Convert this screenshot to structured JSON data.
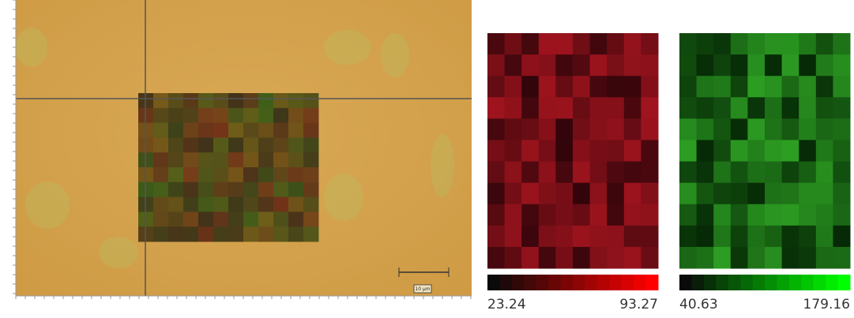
{
  "microscope": {
    "scale_bar_label": "10 µm"
  },
  "colorbars": [
    {
      "min": 23.24,
      "max": 93.27
    },
    {
      "min": 40.63,
      "max": 179.16
    }
  ]
}
